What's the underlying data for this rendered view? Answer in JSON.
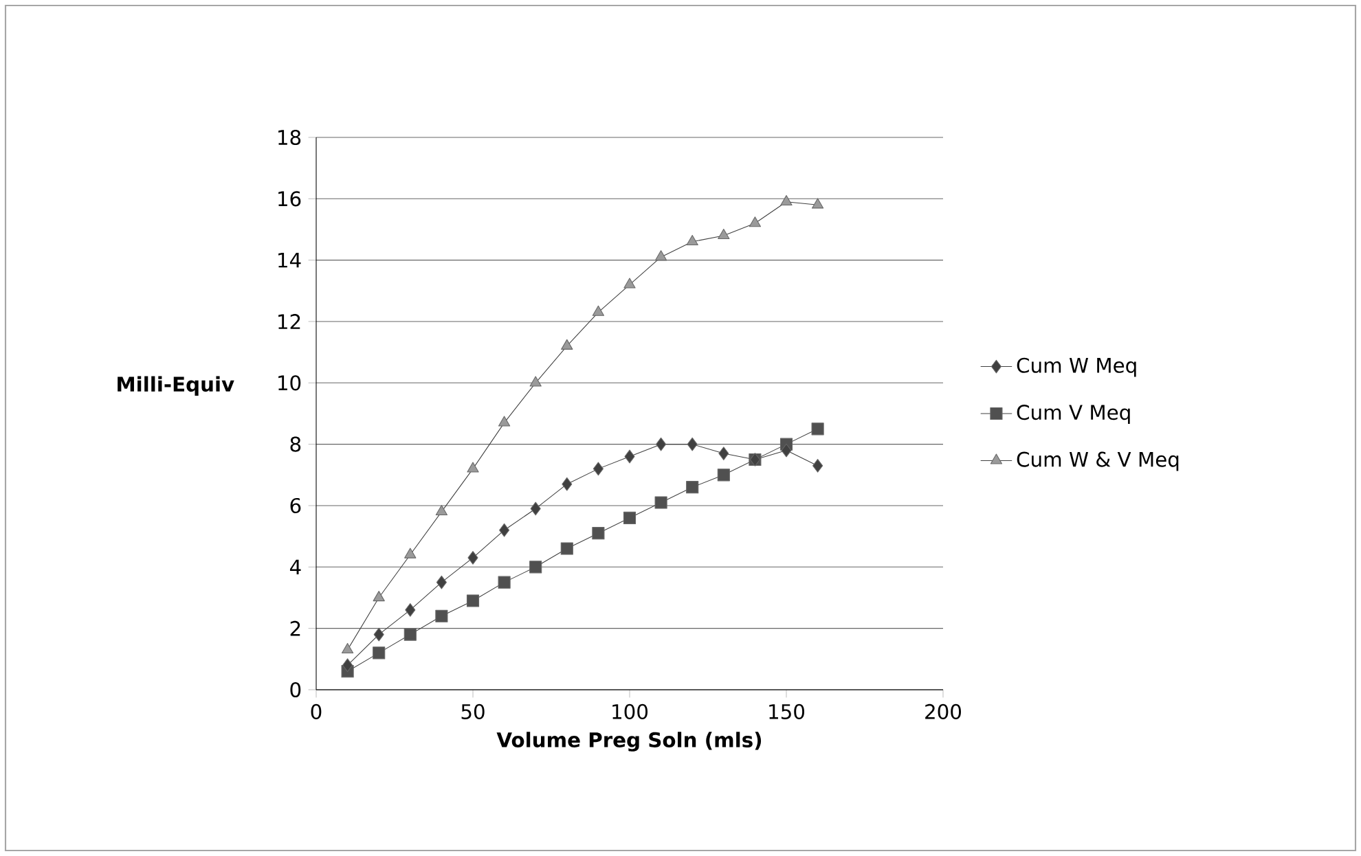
{
  "chart_data": {
    "type": "line",
    "xlabel": "Volume Preg Soln (mls)",
    "ylabel": "Milli-Equiv",
    "x": [
      10,
      20,
      30,
      40,
      50,
      60,
      70,
      80,
      90,
      100,
      110,
      120,
      130,
      140,
      150,
      160
    ],
    "series": [
      {
        "name": "Cum W Meq",
        "color": "#404040",
        "marker": "diamond",
        "values": [
          0.8,
          1.8,
          2.6,
          3.5,
          4.3,
          5.2,
          5.9,
          6.7,
          7.2,
          7.6,
          8.0,
          8.0,
          7.7,
          7.5,
          7.8,
          7.3
        ]
      },
      {
        "name": "Cum V Meq",
        "color": "#505050",
        "marker": "square",
        "values": [
          0.6,
          1.2,
          1.8,
          2.4,
          2.9,
          3.5,
          4.0,
          4.6,
          5.1,
          5.6,
          6.1,
          6.6,
          7.0,
          7.5,
          8.0,
          8.5
        ]
      },
      {
        "name": "Cum W & V Meq",
        "color": "#9a9a9a",
        "marker": "triangle",
        "values": [
          1.3,
          3.0,
          4.4,
          5.8,
          7.2,
          8.7,
          10.0,
          11.2,
          12.3,
          13.2,
          14.1,
          14.6,
          14.8,
          15.2,
          15.9,
          15.8
        ]
      }
    ],
    "xlim": [
      0,
      200
    ],
    "xticks": [
      0,
      50,
      100,
      150,
      200
    ],
    "ylim": [
      0,
      18
    ],
    "yticks": [
      0,
      2,
      4,
      6,
      8,
      10,
      12,
      14,
      16,
      18
    ],
    "grid": "y",
    "legend": "right",
    "line_style": "solid"
  }
}
